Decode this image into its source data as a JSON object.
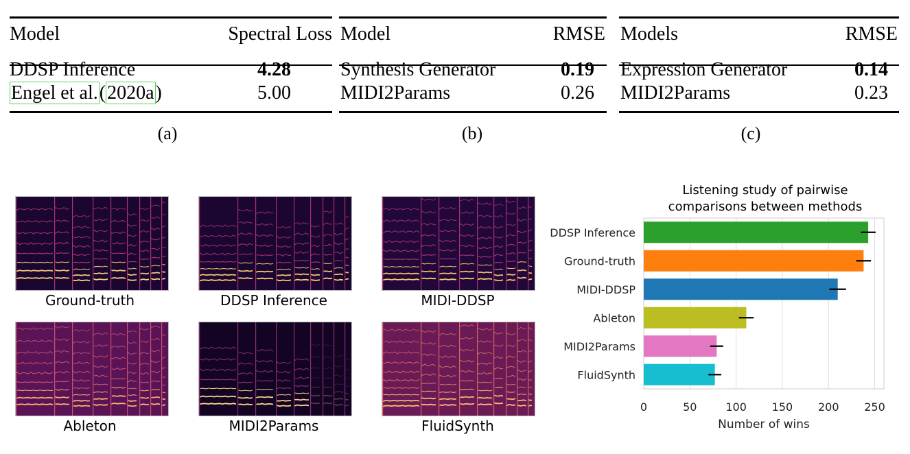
{
  "tables": [
    {
      "header": [
        "Model",
        "Spectral Loss"
      ],
      "rows": [
        {
          "model": "DDSP Inference",
          "value": "4.28",
          "bold": true
        },
        {
          "model_parts": [
            "Engel et al.",
            "(",
            "2020a",
            ")"
          ],
          "value": "5.00",
          "bold": false
        }
      ],
      "caption": "(a)"
    },
    {
      "header": [
        "Model",
        "RMSE"
      ],
      "rows": [
        {
          "model": "Synthesis Generator",
          "value": "0.19",
          "bold": true
        },
        {
          "model": "MIDI2Params",
          "value": "0.26",
          "bold": false
        }
      ],
      "caption": "(b)"
    },
    {
      "header": [
        "Models",
        "RMSE"
      ],
      "rows": [
        {
          "model": "Expression Generator",
          "value": "0.14",
          "bold": true
        },
        {
          "model": "MIDI2Params",
          "value": "0.23",
          "bold": false
        }
      ],
      "caption": "(c)"
    }
  ],
  "spectrograms": [
    {
      "label": "Ground-truth"
    },
    {
      "label": "DDSP Inference"
    },
    {
      "label": "MIDI-DDSP"
    },
    {
      "label": "Ableton"
    },
    {
      "label": "MIDI2Params"
    },
    {
      "label": "FluidSynth"
    }
  ],
  "chart_data": {
    "type": "bar",
    "orientation": "horizontal",
    "title": "Listening study of pairwise comparisons between methods",
    "title_lines": [
      "Listening study of pairwise",
      "comparisons between methods"
    ],
    "xlabel": "Number of wins",
    "ylabel": "",
    "categories": [
      "DDSP Inference",
      "Ground-truth",
      "MIDI-DDSP",
      "Ableton",
      "MIDI2Params",
      "FluidSynth"
    ],
    "values": [
      243,
      238,
      210,
      111,
      79,
      77
    ],
    "error": [
      8,
      8,
      9,
      8,
      7,
      7
    ],
    "colors": [
      "#2ca02c",
      "#ff7f0e",
      "#1f77b4",
      "#bcbd22",
      "#e377c2",
      "#17becf"
    ],
    "xlim": [
      0,
      260
    ],
    "xticks": [
      0,
      50,
      100,
      150,
      200,
      250
    ],
    "grid": true
  }
}
